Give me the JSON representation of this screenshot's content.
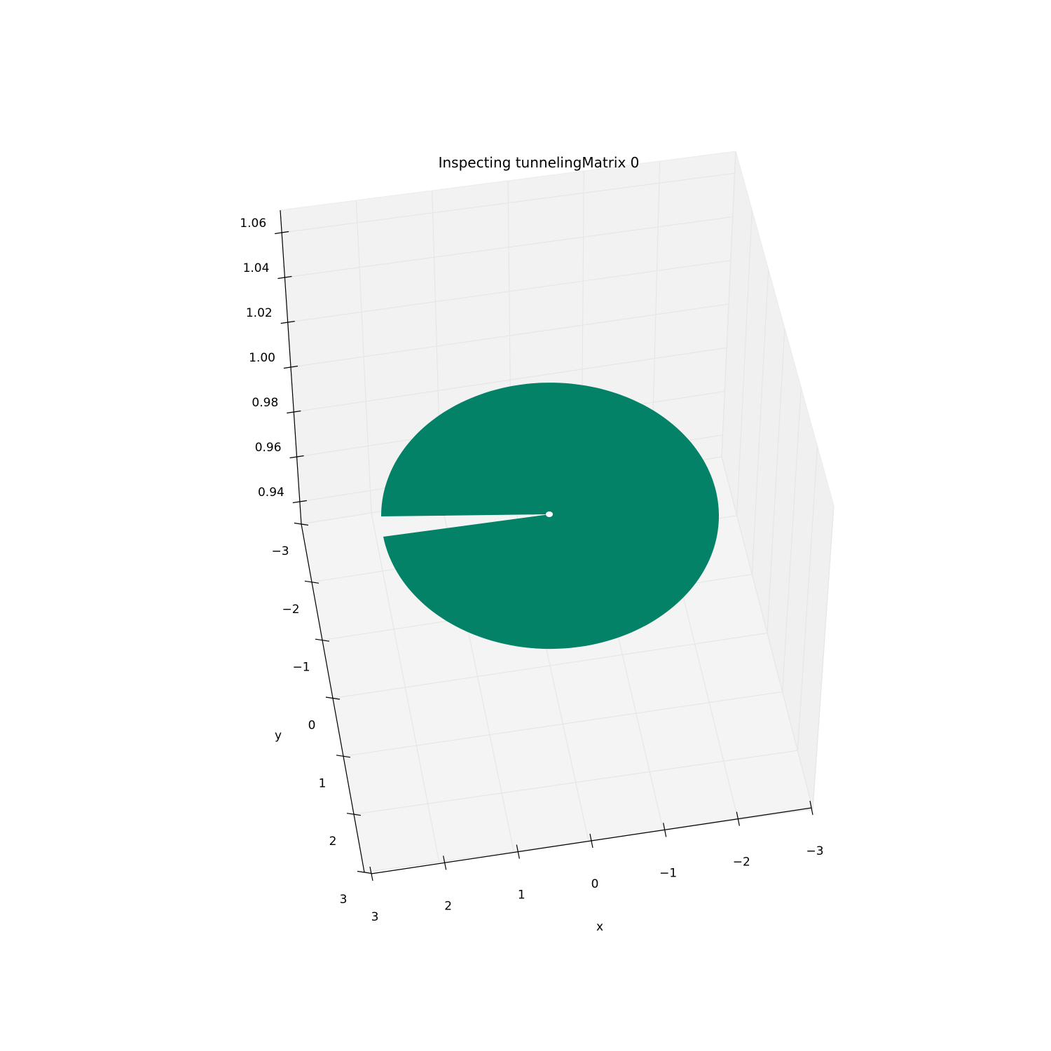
{
  "chart_data": {
    "type": "surface3d",
    "title": "Inspecting tunnelingMatrix 0",
    "xlabel": "x",
    "ylabel": "y",
    "zlabel": "",
    "x_ticks": [
      "3",
      "2",
      "1",
      "0",
      "−1",
      "−2",
      "−3"
    ],
    "y_ticks": [
      "−3",
      "−2",
      "−1",
      "0",
      "1",
      "2",
      "3"
    ],
    "z_ticks": [
      "1.06",
      "1.04",
      "1.02",
      "1.00",
      "0.98",
      "0.96",
      "0.94"
    ],
    "xlim": [
      -3,
      3
    ],
    "ylim": [
      -3,
      3
    ],
    "zlim": [
      0.93,
      1.07
    ],
    "grid": true,
    "surface": {
      "shape": "disk",
      "radius": 2.6,
      "value": 1.0,
      "missing_wedge": true,
      "color": "#038267"
    },
    "colors": {
      "surface": "#038267",
      "pane_left": "#f0f0f0",
      "pane_back": "#f2f2f2",
      "pane_floor": "#f4f4f4",
      "grid": "#e6e6e6"
    }
  }
}
